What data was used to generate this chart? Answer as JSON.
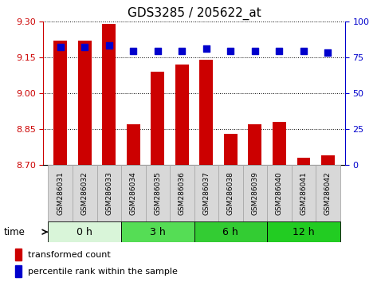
{
  "title": "GDS3285 / 205622_at",
  "samples": [
    "GSM286031",
    "GSM286032",
    "GSM286033",
    "GSM286034",
    "GSM286035",
    "GSM286036",
    "GSM286037",
    "GSM286038",
    "GSM286039",
    "GSM286040",
    "GSM286041",
    "GSM286042"
  ],
  "bar_values": [
    9.22,
    9.22,
    9.29,
    8.87,
    9.09,
    9.12,
    9.14,
    8.83,
    8.87,
    8.88,
    8.73,
    8.74
  ],
  "percentile_values": [
    82,
    82,
    83,
    79,
    79,
    79,
    81,
    79,
    79,
    79,
    79,
    78
  ],
  "bar_color": "#cc0000",
  "dot_color": "#0000cc",
  "ylim_left": [
    8.7,
    9.3
  ],
  "ylim_right": [
    0,
    100
  ],
  "yticks_left": [
    8.7,
    8.85,
    9.0,
    9.15,
    9.3
  ],
  "yticks_right": [
    0,
    25,
    50,
    75,
    100
  ],
  "groups": [
    {
      "label": "0 h",
      "start": 0,
      "end": 3,
      "color": "#d9f5d9"
    },
    {
      "label": "3 h",
      "start": 3,
      "end": 6,
      "color": "#55dd55"
    },
    {
      "label": "6 h",
      "start": 6,
      "end": 9,
      "color": "#33cc33"
    },
    {
      "label": "12 h",
      "start": 9,
      "end": 12,
      "color": "#22cc22"
    }
  ],
  "time_label": "time",
  "legend_bar_label": "transformed count",
  "legend_dot_label": "percentile rank within the sample",
  "bar_width": 0.55,
  "title_fontsize": 11,
  "tick_fontsize": 8,
  "label_fontsize": 9,
  "group_label_fontsize": 9,
  "background_color": "#ffffff",
  "plot_bg_color": "#ffffff",
  "left_tick_color": "#cc0000",
  "right_tick_color": "#0000cc",
  "sample_box_color": "#d8d8d8",
  "sample_box_edge": "#aaaaaa"
}
